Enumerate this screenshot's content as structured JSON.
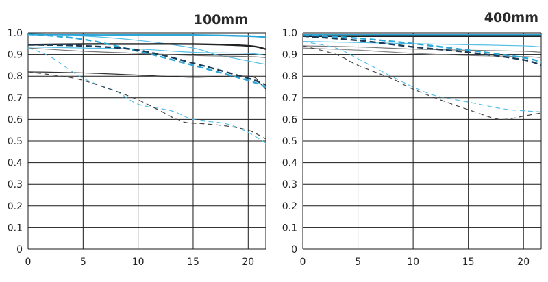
{
  "chart_data": [
    {
      "type": "line",
      "title": "100mm",
      "xlabel": "",
      "ylabel": "",
      "xlim": [
        0,
        21.6
      ],
      "ylim": [
        0,
        1.0
      ],
      "x_ticks": [
        "0",
        "5",
        "10",
        "15",
        "20"
      ],
      "y_ticks": [
        "0",
        "0.1",
        "0.2",
        "0.3",
        "0.4",
        "0.5",
        "0.6",
        "0.7",
        "0.8",
        "0.9",
        "1.0"
      ],
      "grid": true,
      "series": [
        {
          "name": "blue-solid-thick",
          "color": "#2aa7d8",
          "style": "solid",
          "width": 2.4,
          "x": [
            0,
            5,
            10,
            15,
            20,
            21.6
          ],
          "y": [
            0.995,
            0.99,
            0.99,
            0.99,
            0.985,
            0.98
          ]
        },
        {
          "name": "blue-solid-thin-1",
          "color": "#55bfe6",
          "style": "solid",
          "width": 1.2,
          "x": [
            0,
            5,
            10,
            15,
            20,
            21.6
          ],
          "y": [
            0.935,
            0.93,
            0.925,
            0.91,
            0.905,
            0.895
          ]
        },
        {
          "name": "blue-solid-thin-2",
          "color": "#55bfe6",
          "style": "solid",
          "width": 1.2,
          "x": [
            0,
            5,
            10,
            15,
            17,
            19,
            21,
            21.6
          ],
          "y": [
            0.99,
            0.985,
            0.965,
            0.93,
            0.9,
            0.88,
            0.86,
            0.855
          ]
        },
        {
          "name": "black-solid-thick",
          "color": "#222222",
          "style": "solid",
          "width": 2.4,
          "x": [
            0,
            5,
            10,
            15,
            20,
            21.6
          ],
          "y": [
            0.945,
            0.948,
            0.948,
            0.948,
            0.94,
            0.925
          ]
        },
        {
          "name": "gray-solid-thin",
          "color": "#777777",
          "style": "solid",
          "width": 1.2,
          "x": [
            0,
            5,
            10,
            15,
            20,
            21.6
          ],
          "y": [
            0.93,
            0.915,
            0.905,
            0.895,
            0.89,
            0.885
          ]
        },
        {
          "name": "black-solid-thin",
          "color": "#333333",
          "style": "solid",
          "width": 1.2,
          "x": [
            0,
            5,
            10,
            15,
            20,
            21,
            21.6
          ],
          "y": [
            0.82,
            0.815,
            0.805,
            0.795,
            0.8,
            0.77,
            0.74
          ]
        },
        {
          "name": "blue-dashed-thick",
          "color": "#2aa7d8",
          "style": "dashed",
          "width": 2.4,
          "x": [
            0,
            5,
            10,
            15,
            20,
            21.6
          ],
          "y": [
            0.995,
            0.97,
            0.915,
            0.85,
            0.78,
            0.75
          ]
        },
        {
          "name": "black-dashed-thick",
          "color": "#1c3b55",
          "style": "dashed",
          "width": 2.4,
          "x": [
            0,
            5,
            10,
            15,
            20,
            21.6
          ],
          "y": [
            0.945,
            0.94,
            0.92,
            0.86,
            0.79,
            0.76
          ]
        },
        {
          "name": "blue-dashed-thin",
          "color": "#55bfe6",
          "style": "dashed",
          "width": 1.2,
          "x": [
            0,
            2,
            5,
            8,
            10,
            13,
            15,
            18,
            20,
            21.6
          ],
          "y": [
            0.93,
            0.89,
            0.79,
            0.73,
            0.67,
            0.64,
            0.6,
            0.58,
            0.54,
            0.49
          ]
        },
        {
          "name": "black-dashed-thin",
          "color": "#444444",
          "style": "dashed",
          "width": 1.2,
          "x": [
            0,
            3,
            5,
            8,
            10,
            12,
            14,
            16,
            18,
            20,
            21.6
          ],
          "y": [
            0.82,
            0.8,
            0.78,
            0.73,
            0.69,
            0.64,
            0.59,
            0.58,
            0.57,
            0.55,
            0.51
          ]
        }
      ]
    },
    {
      "type": "line",
      "title": "400mm",
      "xlabel": "",
      "ylabel": "",
      "xlim": [
        0,
        21.6
      ],
      "ylim": [
        0,
        1.0
      ],
      "x_ticks": [
        "0",
        "5",
        "10",
        "15",
        "20"
      ],
      "y_ticks": [
        "0",
        "0.1",
        "0.2",
        "0.3",
        "0.4",
        "0.5",
        "0.6",
        "0.7",
        "0.8",
        "0.9",
        "1.0"
      ],
      "grid": true,
      "series": [
        {
          "name": "blue-solid-thick",
          "color": "#2aa7d8",
          "style": "solid",
          "width": 2.4,
          "x": [
            0,
            5,
            10,
            15,
            20,
            21.6
          ],
          "y": [
            0.993,
            0.993,
            0.992,
            0.992,
            0.992,
            0.992
          ]
        },
        {
          "name": "black-solid-thick",
          "color": "#222222",
          "style": "solid",
          "width": 2.4,
          "x": [
            0,
            5,
            10,
            15,
            20,
            21.6
          ],
          "y": [
            0.985,
            0.985,
            0.985,
            0.985,
            0.985,
            0.985
          ]
        },
        {
          "name": "blue-solid-thin",
          "color": "#55bfe6",
          "style": "solid",
          "width": 1.2,
          "x": [
            0,
            5,
            10,
            15,
            20,
            21.6
          ],
          "y": [
            0.96,
            0.955,
            0.95,
            0.945,
            0.94,
            0.935
          ]
        },
        {
          "name": "gray-solid-thin-1",
          "color": "#777777",
          "style": "solid",
          "width": 1.2,
          "x": [
            0,
            5,
            10,
            15,
            20,
            21.6
          ],
          "y": [
            0.94,
            0.935,
            0.925,
            0.92,
            0.915,
            0.91
          ]
        },
        {
          "name": "gray-solid-thin-2",
          "color": "#888888",
          "style": "solid",
          "width": 1.2,
          "x": [
            0,
            5,
            10,
            15,
            20,
            21.6
          ],
          "y": [
            0.93,
            0.92,
            0.905,
            0.895,
            0.89,
            0.885
          ]
        },
        {
          "name": "blue-dashed-thick",
          "color": "#2aa7d8",
          "style": "dashed",
          "width": 2.4,
          "x": [
            0,
            5,
            10,
            15,
            20,
            21.6
          ],
          "y": [
            0.99,
            0.975,
            0.95,
            0.92,
            0.885,
            0.865
          ]
        },
        {
          "name": "black-dashed-thick",
          "color": "#1c3b55",
          "style": "dashed",
          "width": 2.4,
          "x": [
            0,
            5,
            10,
            15,
            20,
            21.6
          ],
          "y": [
            0.985,
            0.965,
            0.935,
            0.91,
            0.875,
            0.85
          ]
        },
        {
          "name": "blue-dashed-thin",
          "color": "#55bfe6",
          "style": "dashed",
          "width": 1.2,
          "x": [
            0,
            3,
            5,
            8,
            10,
            12,
            15,
            18,
            20,
            21.6
          ],
          "y": [
            0.96,
            0.93,
            0.88,
            0.8,
            0.75,
            0.71,
            0.68,
            0.65,
            0.64,
            0.635
          ]
        },
        {
          "name": "black-dashed-thin",
          "color": "#444444",
          "style": "dashed",
          "width": 1.2,
          "x": [
            0,
            3,
            5,
            8,
            10,
            13,
            15,
            17,
            18,
            19,
            20,
            21.6
          ],
          "y": [
            0.94,
            0.9,
            0.85,
            0.79,
            0.74,
            0.68,
            0.645,
            0.61,
            0.6,
            0.605,
            0.615,
            0.63
          ]
        }
      ]
    }
  ]
}
